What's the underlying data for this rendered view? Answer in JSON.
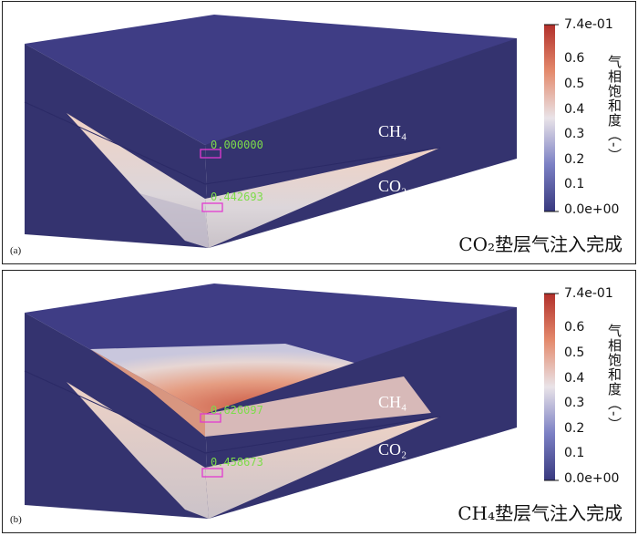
{
  "colorbar": {
    "title": "气相饱和度（-）",
    "ticks": [
      "7.4e-01",
      "0.6",
      "0.5",
      "0.4",
      "0.3",
      "0.2",
      "0.1",
      "0.0e+00"
    ],
    "colors": {
      "top": "#b2302b",
      "upper": "#e48a6c",
      "middle": "#e9e3e8",
      "lower": "#7b80c4",
      "bottom": "#38397f"
    }
  },
  "panels": [
    {
      "letter": "(a)",
      "caption": "CO₂垫层气注入完成",
      "upper_label": "CH₄",
      "lower_label": "CO₂",
      "probe_upper": "0.000000",
      "probe_lower": "0.442693"
    },
    {
      "letter": "(b)",
      "caption": "CH₄垫层气注入完成",
      "upper_label": "CH₄",
      "lower_label": "CO₂",
      "probe_upper": "0.626097",
      "probe_lower": "0.458673"
    }
  ]
}
